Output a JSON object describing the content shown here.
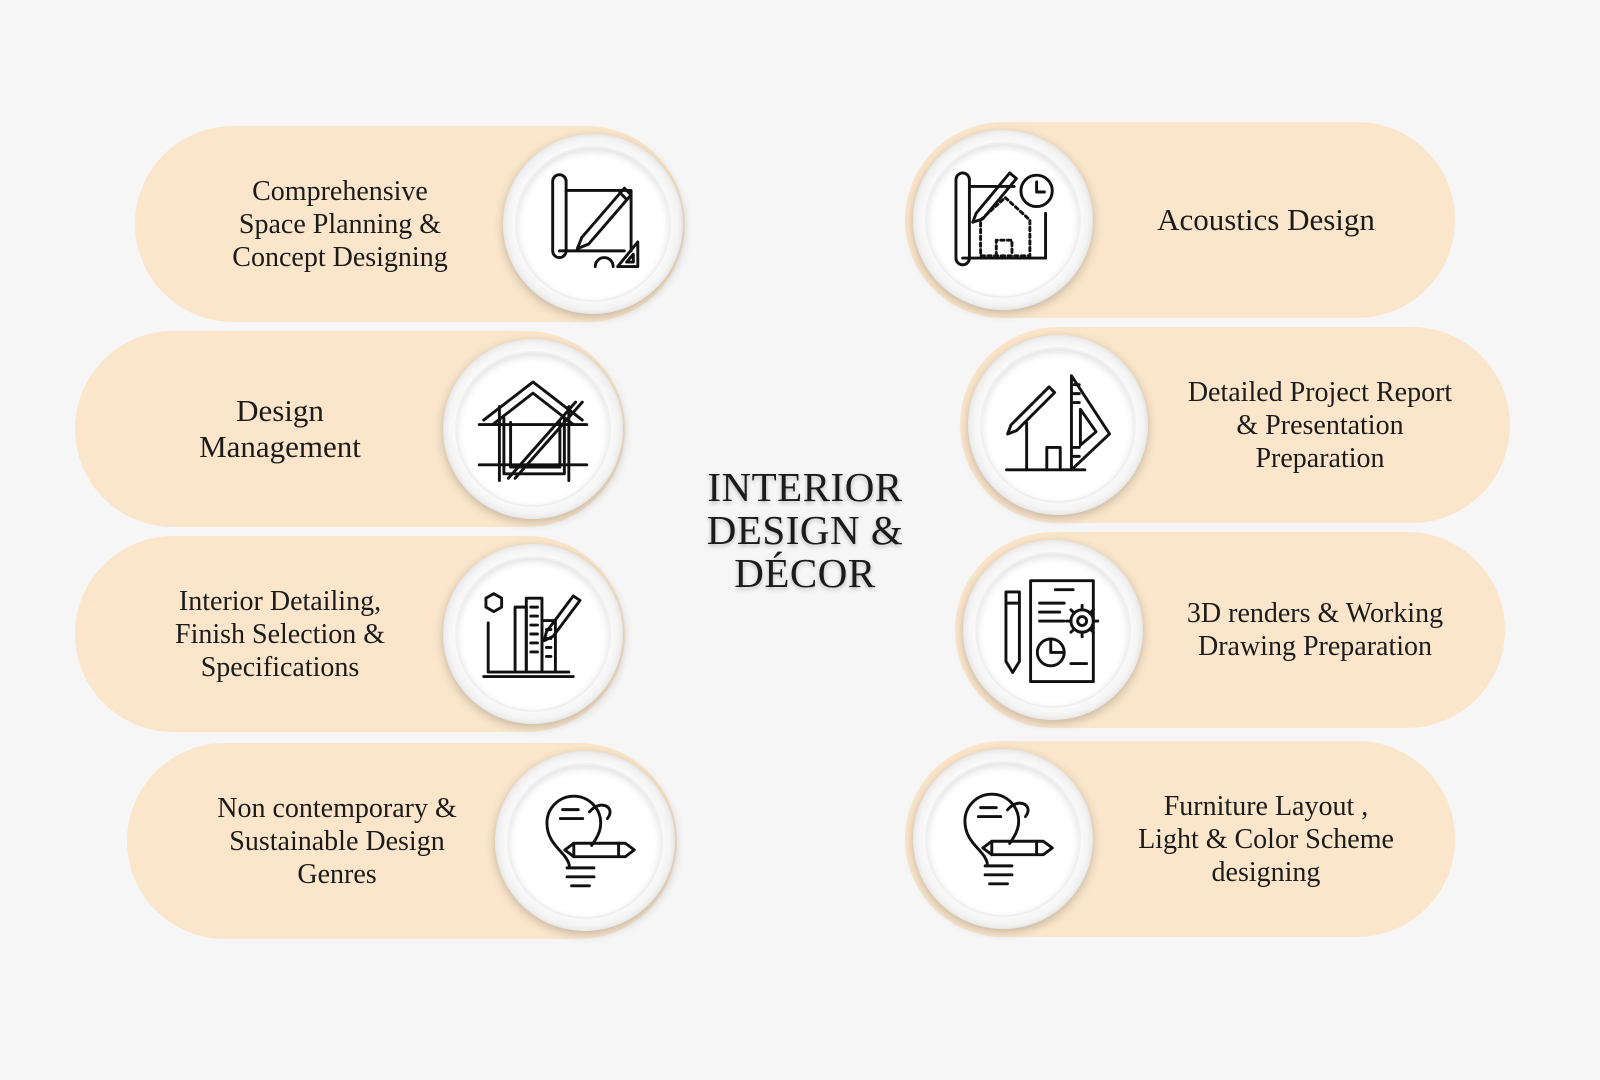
{
  "title": {
    "lines": [
      "INTERIOR",
      "DESIGN &",
      "DÉCOR"
    ]
  },
  "colors": {
    "background": "#f6f6f6",
    "pill": "#fbe6cb",
    "text": "#1b1b1b"
  },
  "left_items": [
    {
      "lines": [
        "Comprehensive",
        "Space Planning &",
        "Concept Designing"
      ],
      "icon": "blueprint-pencil-icon"
    },
    {
      "lines": [
        "Design",
        "Management"
      ],
      "icon": "house-sketch-icon"
    },
    {
      "lines": [
        "Interior Detailing,",
        "Finish Selection &",
        "Specifications"
      ],
      "icon": "city-design-icon"
    },
    {
      "lines": [
        "Non contemporary &",
        "Sustainable Design",
        "Genres"
      ],
      "icon": "lightbulb-pencil-icon"
    }
  ],
  "right_items": [
    {
      "lines": [
        "Acoustics Design"
      ],
      "icon": "house-plan-clock-icon"
    },
    {
      "lines": [
        "Detailed Project Report",
        "& Presentation",
        "Preparation"
      ],
      "icon": "house-ruler-icon"
    },
    {
      "lines": [
        "3D renders & Working",
        "Drawing Preparation"
      ],
      "icon": "document-gear-icon"
    },
    {
      "lines": [
        "Furniture Layout ,",
        "Light & Color Scheme",
        "designing"
      ],
      "icon": "lightbulb-pencil-icon"
    }
  ]
}
